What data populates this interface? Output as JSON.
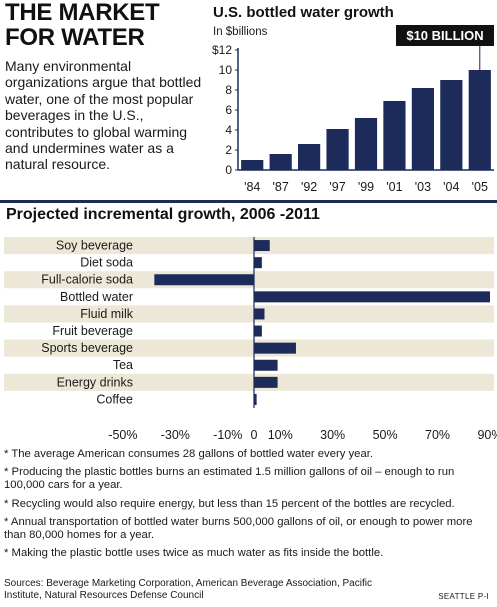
{
  "headline": "THE MARKET FOR WATER",
  "intro": "Many environmental organizations argue that bottled water, one of the most popular beverages in the U.S., contributes to global warming and undermines water as a natural resource.",
  "colors": {
    "navy": "#1c2b5a",
    "band": "#ece7d6"
  },
  "chart_data": [
    {
      "type": "bar",
      "title": "U.S. bottled water growth",
      "ylabel": "In $billions",
      "categories": [
        "'84",
        "'87",
        "'92",
        "'97",
        "'99",
        "'01",
        "'03",
        "'04",
        "'05"
      ],
      "values": [
        1.0,
        1.6,
        2.6,
        4.1,
        5.2,
        6.9,
        8.2,
        9.0,
        10.0
      ],
      "ylim": [
        0,
        12
      ],
      "yticks": [
        "0",
        "2",
        "4",
        "6",
        "8",
        "10",
        "$12"
      ],
      "callout": "$10 BILLION",
      "grid": false
    },
    {
      "type": "bar",
      "orientation": "horizontal",
      "title": "Projected incremental growth, 2006 -2011",
      "categories": [
        "Soy beverage",
        "Diet soda",
        "Full-calorie soda",
        "Bottled water",
        "Fluid milk",
        "Fruit beverage",
        "Sports beverage",
        "Tea",
        "Energy drinks",
        "Coffee"
      ],
      "values": [
        6,
        3,
        -38,
        90,
        4,
        3,
        16,
        9,
        9,
        1
      ],
      "xlim": [
        -50,
        90
      ],
      "xticks": [
        "-50%",
        "-30%",
        "-10%",
        "0",
        "10%",
        "30%",
        "50%",
        "70%",
        "90%"
      ],
      "grid": false
    }
  ],
  "notes": [
    "* The average American consumes 28 gallons of bottled water every year.",
    "* Producing the plastic bottles burns an estimated 1.5 million gallons of oil – enough to run 100,000 cars for a year.",
    "* Recycling would also require energy, but less than 15 percent of the bottles are recycled.",
    "* Annual transportation of bottled water burns 500,000 gallons of oil, or enough to power more than 80,000 homes for a year.",
    "* Making the plastic bottle uses twice as much water as fits inside the bottle."
  ],
  "sources": "Sources: Beverage Marketing Corporation, American Beverage Association, Pacific Institute, Natural Resources Defense Council",
  "credit": "SEATTLE P-I"
}
